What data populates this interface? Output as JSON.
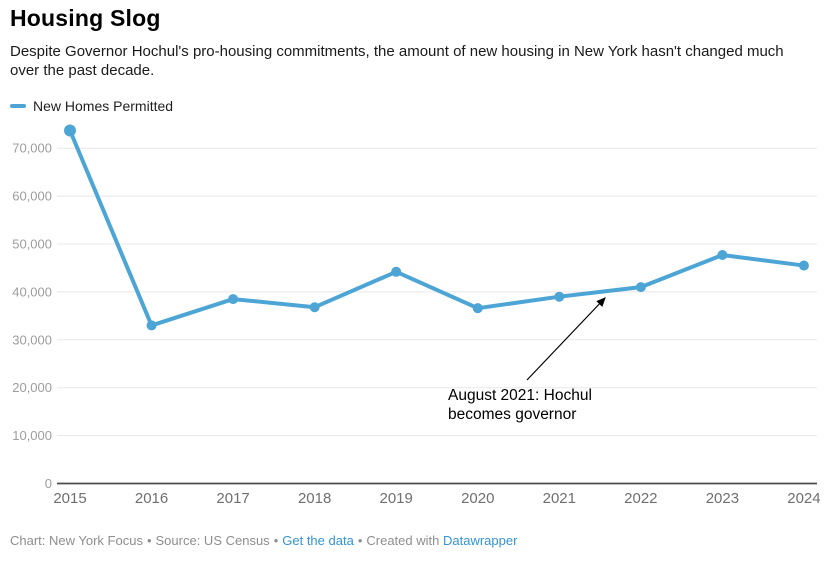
{
  "header": {
    "title": "Housing Slog",
    "description": "Despite Governor Hochul's pro-housing commitments, the amount of new housing in New York hasn't changed much over the past decade."
  },
  "legend": {
    "label": "New Homes Permitted",
    "color": "#4da5d5"
  },
  "chart_data": {
    "type": "line",
    "title": "Housing Slog",
    "categories": [
      "2015",
      "2016",
      "2017",
      "2018",
      "2019",
      "2020",
      "2021",
      "2022",
      "2023",
      "2024"
    ],
    "series": [
      {
        "name": "New Homes Permitted",
        "values": [
          73700,
          33000,
          38500,
          36800,
          44200,
          36600,
          39000,
          41000,
          47700,
          45500
        ]
      }
    ],
    "ylim": [
      0,
      75000
    ],
    "yticks": [
      0,
      10000,
      20000,
      30000,
      40000,
      50000,
      60000,
      70000
    ],
    "grid": true,
    "legend_position": "top-left",
    "line_color": "#4da5d5",
    "grid_color": "#e8e8e8",
    "baseline_color": "#4c4c4c",
    "y_tick_color": "#9d9d9d",
    "x_tick_color": "#6f6f6f",
    "annotation": {
      "lines": [
        "August 2021: Hochul",
        "becomes governor"
      ],
      "color": "#000000"
    }
  },
  "footer": {
    "chart_credit": "Chart: New York Focus",
    "separator": "•",
    "source_credit": "Source: US Census",
    "get_data_link": "Get the data",
    "created_with": "Created with",
    "datawrapper_link": "Datawrapper",
    "link_color": "#3394d9"
  }
}
